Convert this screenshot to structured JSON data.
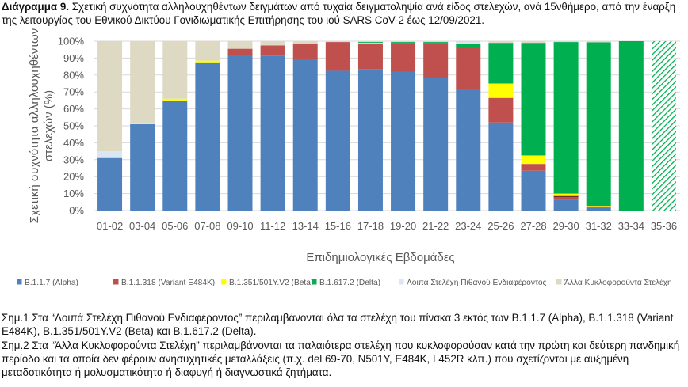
{
  "title": {
    "prefix": "Διάγραμμα 9.",
    "text": " Σχετική συχνότητα αλληλουχηθέντων δειγμάτων από τυχαία δειγματοληψία ανά είδος στελεχών, ανά 15νθήμερο, από την έναρξη της λειτουργίας του Εθνικού Δικτύου Γονιδιωματικής Επιτήρησης του ιού SARS CoV-2 έως 12/09/2021."
  },
  "notes": [
    "Σημ.1 Στα “Λοιπά Στελέχη Πιθανού Ενδιαφέροντος” περιλαμβάνονται όλα τα στελέχη του πίνακα 3 εκτός των B.1.1.7 (Alpha), B.1.1.318 (Variant E484K), B.1.351/501Y.V2 (Beta) και B.1.617.2 (Delta).",
    "Σημ.2 Στα “Άλλα Κυκλοφορούντα Στελέχη” περιλαμβάνονται τα παλαιότερα στελέχη που κυκλοφορούσαν κατά την πρώτη και δεύτερη πανδημική περίοδο και τα οποία δεν φέρουν ανησυχητικές μεταλλάξεις (π.χ. del 69-70, N501Y, E484K, L452R κλπ.) που σχετίζονται με αυξημένη μεταδοτικότητα ή μολυσματικότητα ή διαφυγή ή διαγνωστικά ζητήματα."
  ],
  "chart_data": {
    "type": "bar",
    "stacked": true,
    "xlabel": "Επιδημιολογικές Εβδομάδες",
    "ylabel": "Σχετική συχνότητα αλληλουχηθέντων στελεχών (%)",
    "ylim": [
      0,
      100
    ],
    "yticks": [
      "0%",
      "10%",
      "20%",
      "30%",
      "40%",
      "50%",
      "60%",
      "70%",
      "80%",
      "90%",
      "100%"
    ],
    "grid": true,
    "legend_position": "bottom",
    "categories": [
      "01-02",
      "03-04",
      "05-06",
      "07-08",
      "09-10",
      "11-12",
      "13-14",
      "15-16",
      "17-18",
      "19-20",
      "21-22",
      "23-24",
      "25-26",
      "27-28",
      "29-30",
      "31-32",
      "33-34",
      "35-36"
    ],
    "hatched_category": "35-36",
    "series": [
      {
        "name": "B.1.1.7 (Alpha)",
        "color": "#4f81bd",
        "values": [
          31,
          51,
          65,
          87.5,
          92,
          91.5,
          89.5,
          82.5,
          83.5,
          82,
          78.5,
          71.5,
          52,
          23.5,
          6.5,
          1.5,
          0,
          0
        ]
      },
      {
        "name": "B.1.1.318 (Variant E484K)",
        "color": "#c0504d",
        "values": [
          0,
          0,
          0,
          0,
          3.5,
          6,
          9,
          17,
          15,
          17,
          20.5,
          25,
          14.5,
          4,
          2,
          1,
          0,
          0
        ]
      },
      {
        "name": "B.1.351/501Y.V2 (Beta)",
        "color": "#ffff00",
        "values": [
          0.5,
          0.8,
          1,
          1,
          0,
          0,
          0,
          0,
          0.5,
          0,
          0,
          0,
          8.5,
          5,
          1.5,
          0.3,
          0,
          0
        ]
      },
      {
        "name": "B.1.617.2 (Delta)",
        "color": "#00b050",
        "values": [
          0,
          0,
          0,
          0,
          0,
          0,
          0,
          0,
          0.5,
          0.5,
          0.5,
          2,
          24,
          66.5,
          89.5,
          96.5,
          100,
          100
        ]
      },
      {
        "name": "Λοιπά Στελέχη Πιθανού Ενδιαφέροντος",
        "color": "#dbe6f4",
        "values": [
          3.5,
          0,
          0,
          0,
          0,
          0,
          0,
          0,
          0,
          0,
          0,
          1,
          0,
          0,
          0,
          0,
          0,
          0
        ]
      },
      {
        "name": "Άλλα Κυκλοφορούντα Στελέχη",
        "color": "#ddd9c3",
        "values": [
          65,
          48.2,
          34,
          11.5,
          4.5,
          2.5,
          1.5,
          0.5,
          0.5,
          0.5,
          0.5,
          0.5,
          1,
          1,
          0.5,
          0.7,
          0,
          0
        ]
      }
    ],
    "extra_marks": {
      "29-30": {
        "color": "#000000",
        "note": "thin dark band"
      }
    }
  }
}
